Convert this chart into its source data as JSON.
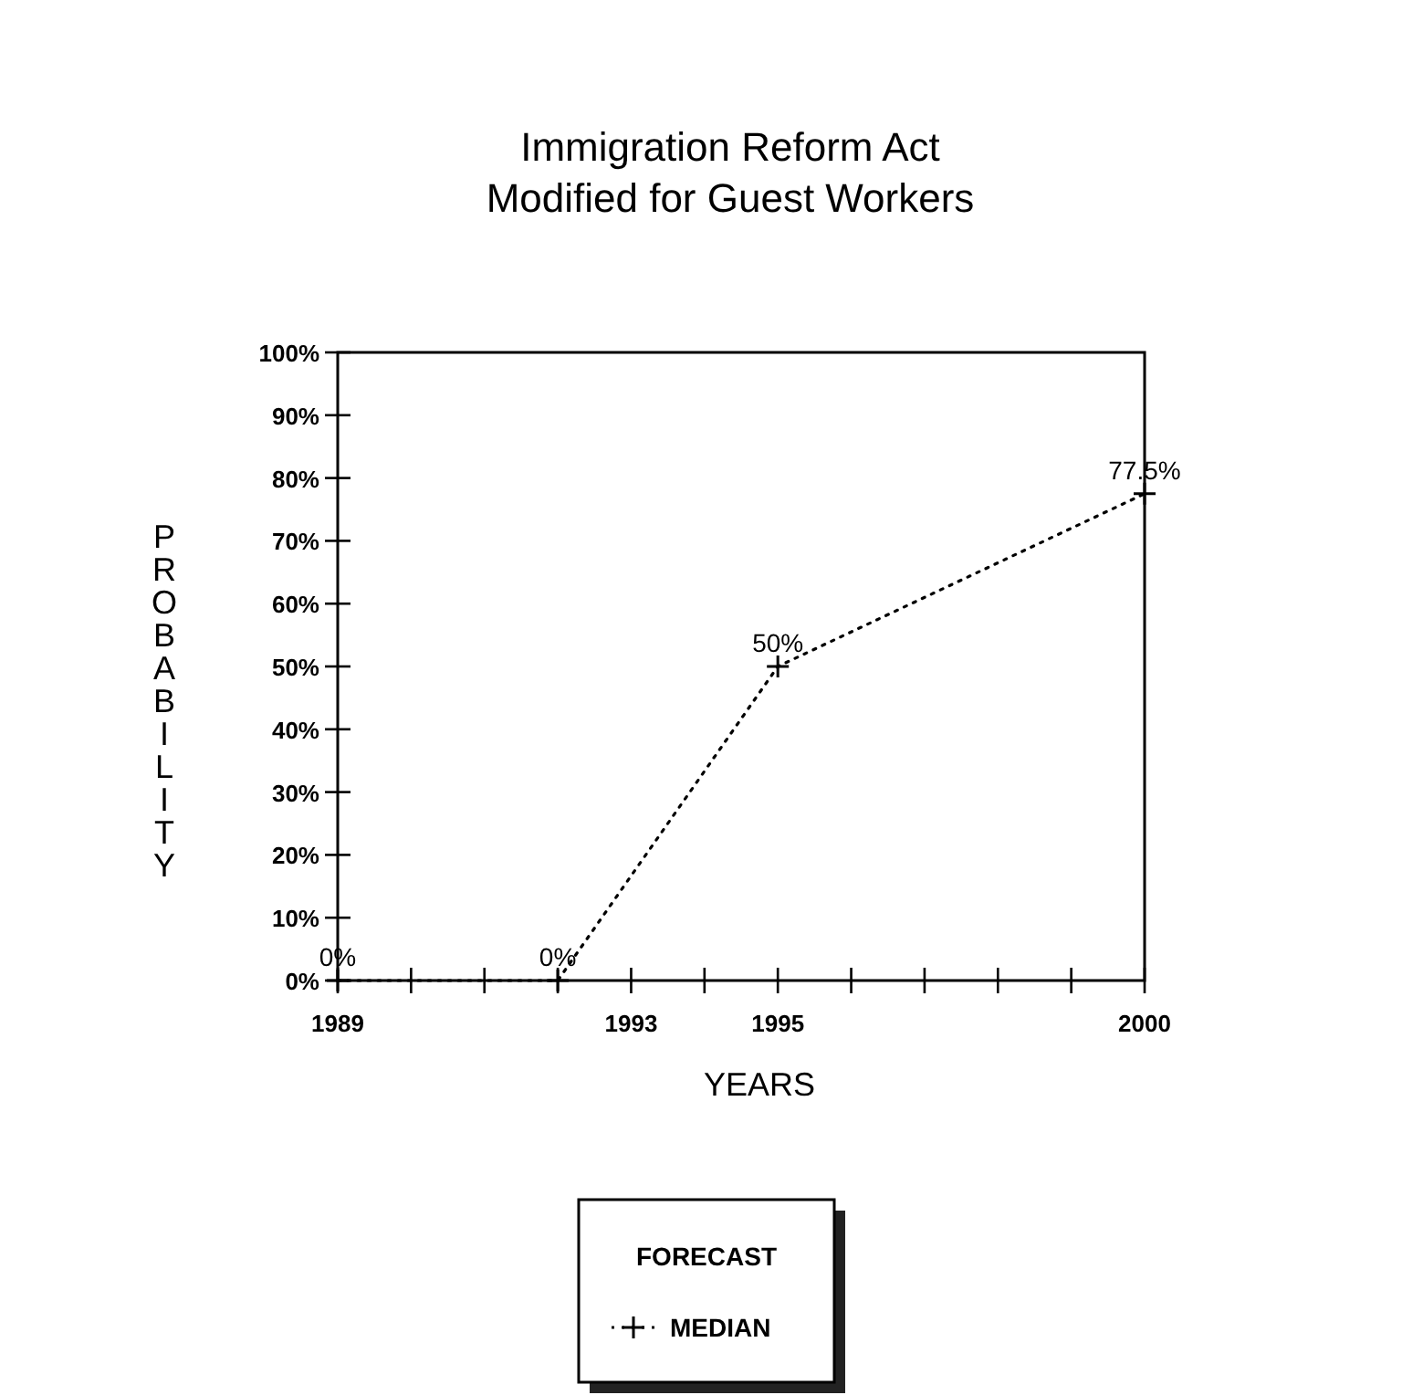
{
  "chart_data": {
    "type": "line",
    "title": "Immigration Reform Act\nModified for Guest Workers",
    "xlabel": "YEARS",
    "ylabel": "PROBABILITY",
    "legend_title": "FORECAST",
    "legend": "bottom",
    "marker": "cross",
    "line_style": "dotted",
    "grid": false,
    "x": [
      1989,
      1992,
      1995,
      2000
    ],
    "series": [
      {
        "name": "MEDIAN",
        "color": "#000000",
        "values": [
          0,
          0,
          50,
          77.5
        ],
        "value_labels": [
          "0%",
          "0%",
          "50%",
          "77.5%"
        ]
      }
    ],
    "xlim": [
      1989,
      2000
    ],
    "xticks": [
      1989,
      {
        "value": 1990,
        "label": null
      },
      {
        "value": 1991,
        "label": null
      },
      {
        "value": 1992,
        "label": null
      },
      1993,
      {
        "value": 1994,
        "label": null
      },
      1995,
      {
        "value": 1996,
        "label": null
      },
      {
        "value": 1997,
        "label": null
      },
      {
        "value": 1998,
        "label": null
      },
      {
        "value": 1999,
        "label": null
      },
      2000
    ],
    "ylim": [
      0,
      100
    ],
    "yticks": [
      {
        "value": 0,
        "label": "0%"
      },
      {
        "value": 10,
        "label": "10%"
      },
      {
        "value": 20,
        "label": "20%"
      },
      {
        "value": 30,
        "label": "30%"
      },
      {
        "value": 40,
        "label": "40%"
      },
      {
        "value": 50,
        "label": "50%"
      },
      {
        "value": 60,
        "label": "60%"
      },
      {
        "value": 70,
        "label": "70%"
      },
      {
        "value": 80,
        "label": "80%"
      },
      {
        "value": 90,
        "label": "90%"
      },
      {
        "value": 100,
        "label": "100%"
      }
    ]
  }
}
